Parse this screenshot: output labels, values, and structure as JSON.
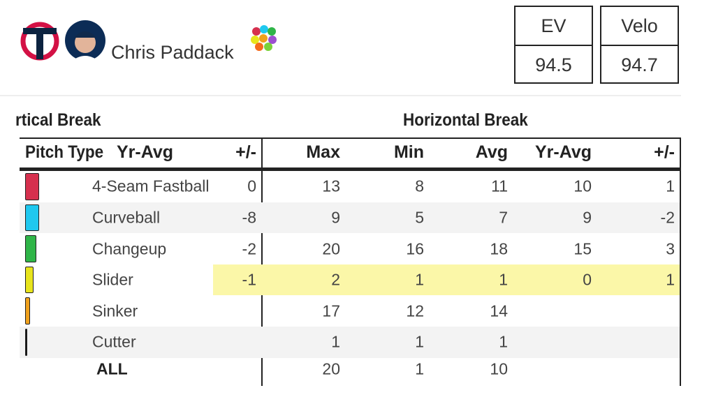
{
  "player": {
    "name": "Chris Paddack"
  },
  "stats": [
    {
      "label": "EV",
      "value": "94.5"
    },
    {
      "label": "Velo",
      "value": "94.7"
    }
  ],
  "table": {
    "groups": [
      "rtical Break",
      "Horizontal Break"
    ],
    "pitch_header": "Pitch Type",
    "columns": [
      "Yr-Avg",
      "+/-",
      "Max",
      "Min",
      "Avg",
      "Yr-Avg",
      "+/-"
    ],
    "rows": [
      {
        "pitch": "4-Seam Fastball",
        "color": "#d6304e",
        "highlight": false,
        "cells": [
          null,
          0,
          13,
          8,
          11,
          10,
          1
        ]
      },
      {
        "pitch": "Curveball",
        "color": "#1fc8ef",
        "highlight": false,
        "cells": [
          null,
          -8,
          9,
          5,
          7,
          9,
          -2
        ]
      },
      {
        "pitch": "Changeup",
        "color": "#2fb548",
        "highlight": false,
        "cells": [
          null,
          -2,
          20,
          16,
          18,
          15,
          3
        ]
      },
      {
        "pitch": "Slider",
        "color": "#e8e41c",
        "highlight": true,
        "cells": [
          null,
          -1,
          2,
          1,
          1,
          0,
          1
        ]
      },
      {
        "pitch": "Sinker",
        "color": "#f0a11c",
        "highlight": false,
        "cells": [
          null,
          null,
          17,
          12,
          14,
          null,
          null
        ]
      },
      {
        "pitch": "Cutter",
        "color": "#111111",
        "highlight": false,
        "cells": [
          null,
          null,
          1,
          1,
          1,
          null,
          null
        ]
      }
    ],
    "total": {
      "label": "ALL",
      "cells": [
        null,
        null,
        20,
        1,
        10,
        null,
        null
      ]
    }
  }
}
